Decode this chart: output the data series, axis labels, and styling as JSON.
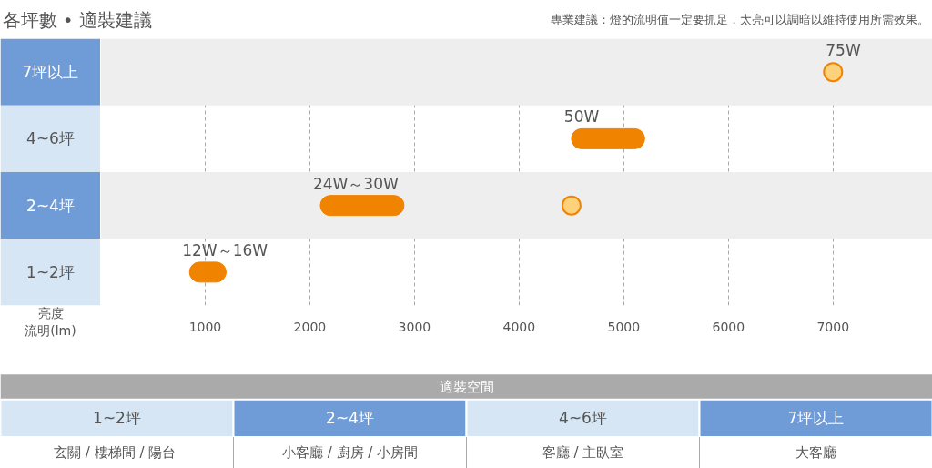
{
  "chart_data": {
    "type": "bar",
    "orientation": "horizontal",
    "title": "各坪數 • 適裝建議",
    "subtitle": "專業建議：燈的流明值一定要抓足，太亮可以調暗以維持使用所需效果。",
    "xlabel": "亮度流明(lm)",
    "categories": [
      "7坪以上",
      "4~6坪",
      "2~4坪",
      "1~2坪"
    ],
    "series": [
      {
        "color": "#f08300",
        "base": [
          null,
          4500,
          2100,
          850
        ],
        "values": [
          null,
          700,
          800,
          350
        ]
      },
      {
        "type": "scatter",
        "color": "#f08300",
        "x": [
          "7坪以上",
          "2~4坪"
        ],
        "values": [
          7000,
          4500
        ]
      }
    ],
    "xlim": [
      0,
      7950
    ],
    "xticks": [
      1000,
      2000,
      3000,
      4000,
      5000,
      6000,
      7000
    ],
    "grid": "x",
    "marker": "circle",
    "annotations": [
      {
        "text": "12W～16W",
        "x": 850,
        "y": "1~2坪"
      },
      {
        "text": "24W～30W",
        "x": 2100,
        "y": "2~4坪"
      },
      {
        "text": "50W",
        "x": 4500,
        "y": "4~6坪"
      },
      {
        "text": "75W",
        "x": 7000,
        "y": "7坪以上"
      },
      "適裝空間",
      "玄關 /  樓梯間 / 陽台",
      "小客廳 / 廚房 / 小房間",
      "客廳 / 主臥室",
      "大客廳"
    ]
  }
}
